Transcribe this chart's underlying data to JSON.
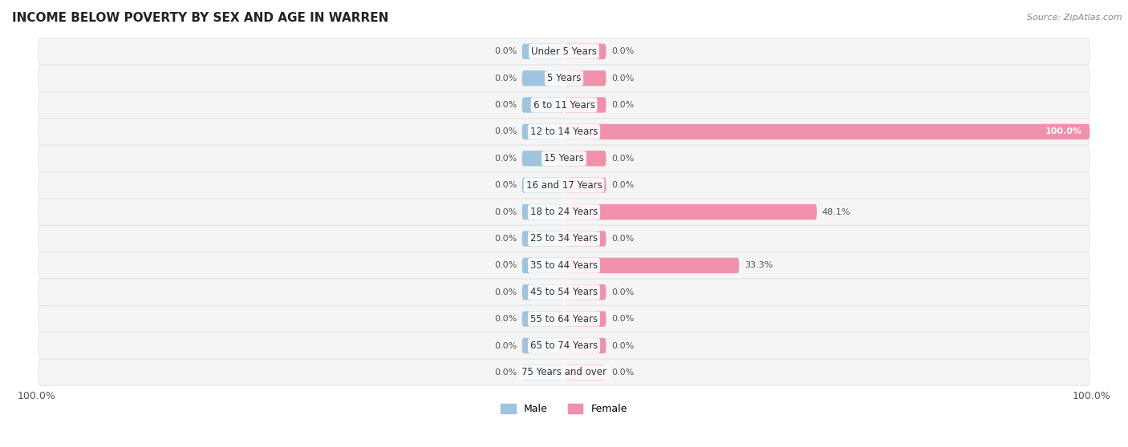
{
  "title": "INCOME BELOW POVERTY BY SEX AND AGE IN WARREN",
  "source": "Source: ZipAtlas.com",
  "categories": [
    "Under 5 Years",
    "5 Years",
    "6 to 11 Years",
    "12 to 14 Years",
    "15 Years",
    "16 and 17 Years",
    "18 to 24 Years",
    "25 to 34 Years",
    "35 to 44 Years",
    "45 to 54 Years",
    "55 to 64 Years",
    "65 to 74 Years",
    "75 Years and over"
  ],
  "male_values": [
    0.0,
    0.0,
    0.0,
    0.0,
    0.0,
    0.0,
    0.0,
    0.0,
    0.0,
    0.0,
    0.0,
    0.0,
    0.0
  ],
  "female_values": [
    0.0,
    0.0,
    0.0,
    100.0,
    0.0,
    0.0,
    48.1,
    0.0,
    33.3,
    0.0,
    0.0,
    0.0,
    0.0
  ],
  "male_color": "#9ec4de",
  "female_color": "#f090aa",
  "row_bg_color": "#e8e8e8",
  "row_fill_color": "#f5f5f5",
  "title_fontsize": 11,
  "label_fontsize": 8.5,
  "value_fontsize": 8.0,
  "xlim": 100,
  "bar_height": 0.58,
  "min_bar": 8.0,
  "legend_male": "Male",
  "legend_female": "Female",
  "bottom_left_label": "100.0%",
  "bottom_right_label": "100.0%"
}
